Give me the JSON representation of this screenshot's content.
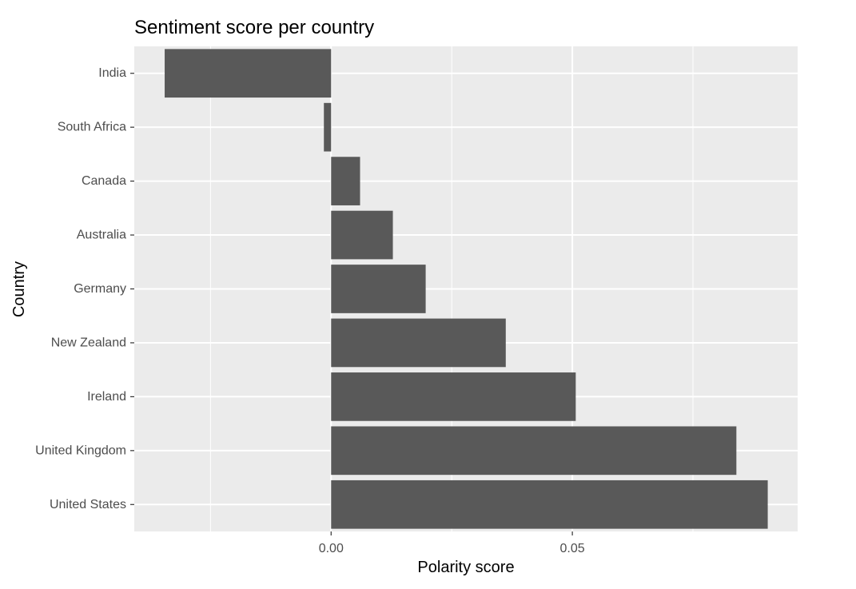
{
  "chart_data": {
    "type": "bar",
    "orientation": "horizontal",
    "title": "Sentiment score per country",
    "xlabel": "Polarity score",
    "ylabel": "Country",
    "categories": [
      "India",
      "South Africa",
      "Canada",
      "Australia",
      "Germany",
      "New Zealand",
      "Ireland",
      "United Kingdom",
      "United States"
    ],
    "values": [
      -0.0345,
      -0.0015,
      0.006,
      0.0128,
      0.0196,
      0.0362,
      0.0507,
      0.084,
      0.0905
    ],
    "xlim": [
      -0.0408,
      0.0967
    ],
    "xticks": [
      0.0,
      0.05
    ],
    "xtick_labels": [
      "0.00",
      "0.05"
    ],
    "grid": true,
    "legend": "none",
    "colors": {
      "panel_background": "#ebebeb",
      "grid_major": "#ffffff",
      "bar_fill": "#595959",
      "tick_label": "#4d4d4d",
      "tick_mark": "#333333"
    }
  }
}
